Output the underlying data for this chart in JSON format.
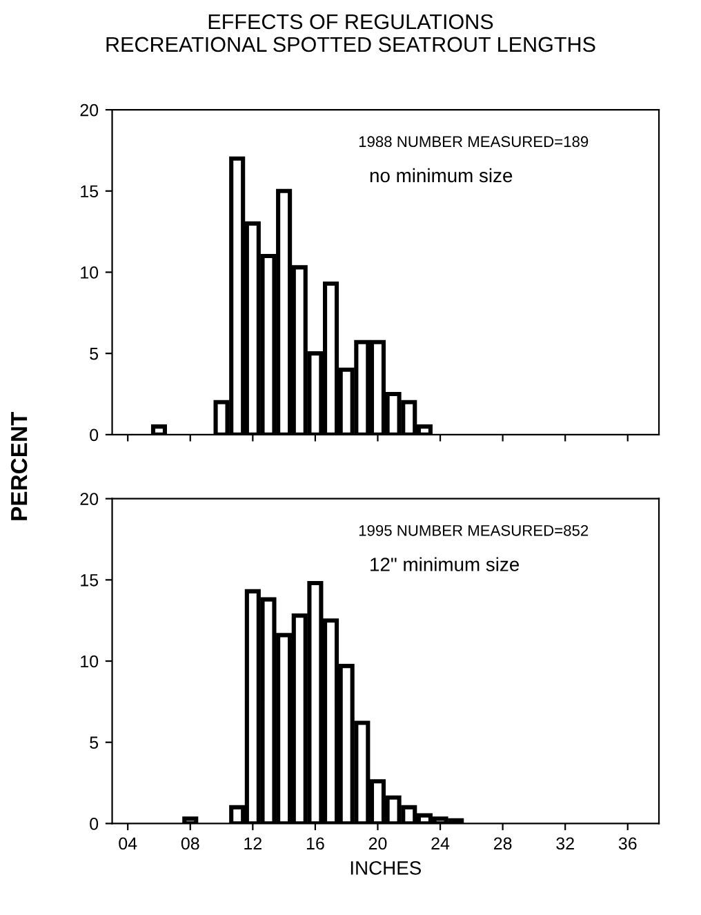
{
  "chart_data": [
    {
      "type": "histogram",
      "title": "EFFECTS OF REGULATIONS\nRECREATIONAL SPOTTED SEATROUT LENGTHS",
      "ylabel": "PERCENT",
      "annotations": [
        "1988 NUMBER MEASURED=189",
        "no minimum size"
      ],
      "bins": [
        5.5,
        6.5,
        7.5,
        8.5,
        9.5,
        10.5,
        11.5,
        12.5,
        13.5,
        14.5,
        15.5,
        16.5,
        17.5,
        18.5,
        19.5,
        20.5,
        21.5,
        22.5,
        23.5
      ],
      "values": [
        0.5,
        0,
        0,
        0,
        2,
        17,
        13,
        11,
        15,
        10.3,
        5,
        9.3,
        4,
        5.7,
        5.7,
        2.5,
        2,
        0.5
      ],
      "color": "#ffffff",
      "xlim": [
        3,
        38
      ],
      "ylim": [
        0,
        20
      ],
      "yticks": [
        0,
        5,
        10,
        15,
        20
      ],
      "tick_labels": "y",
      "grid": false
    },
    {
      "type": "histogram",
      "xlabel": "INCHES",
      "annotations": [
        "1995 NUMBER MEASURED=852",
        "12\" minimum size"
      ],
      "bins": [
        7.5,
        8.5,
        9.5,
        10.5,
        11.5,
        12.5,
        13.5,
        14.5,
        15.5,
        16.5,
        17.5,
        18.5,
        19.5,
        20.5,
        21.5,
        22.5,
        23.5,
        24.5,
        25.5
      ],
      "values": [
        0.3,
        0,
        0,
        1.0,
        14.3,
        13.8,
        11.6,
        12.8,
        14.8,
        12.5,
        9.7,
        6.2,
        2.6,
        1.6,
        1.0,
        0.5,
        0.3,
        0.2
      ],
      "color": "#ffffff",
      "xlim": [
        3,
        38
      ],
      "ylim": [
        0,
        20
      ],
      "xticks": [
        {
          "value": 4,
          "label": "04"
        },
        {
          "value": 8,
          "label": "08"
        },
        12,
        16,
        20,
        24,
        28,
        32,
        36
      ],
      "yticks": [
        0,
        5,
        10,
        15,
        20
      ],
      "grid": false
    }
  ]
}
